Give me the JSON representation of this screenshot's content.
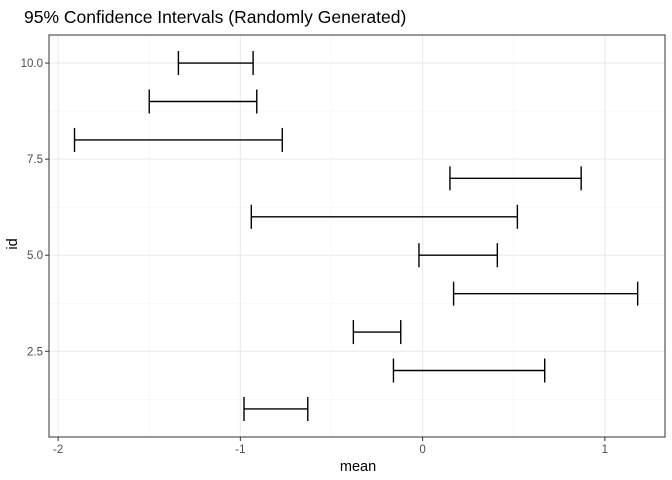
{
  "chart_data": {
    "type": "errorbar",
    "title": "95% Confidence Intervals (Randomly Generated)",
    "xlabel": "mean",
    "ylabel": "id",
    "xlim": [
      -2.05,
      1.33
    ],
    "ylim": [
      0.27,
      10.73
    ],
    "x_ticks": [
      -2,
      -1,
      0,
      1
    ],
    "x_tick_labels": [
      "-2",
      "-1",
      "0",
      "1"
    ],
    "y_ticks": [
      2.5,
      5.0,
      7.5,
      10.0
    ],
    "y_tick_labels": [
      "2.5",
      "5.0",
      "7.5",
      "10.0"
    ],
    "grid": true,
    "intervals": [
      {
        "id": 1,
        "lower": -0.98,
        "upper": -0.63
      },
      {
        "id": 2,
        "lower": -0.16,
        "upper": 0.67
      },
      {
        "id": 3,
        "lower": -0.38,
        "upper": -0.12
      },
      {
        "id": 4,
        "lower": 0.17,
        "upper": 1.18
      },
      {
        "id": 5,
        "lower": -0.02,
        "upper": 0.41
      },
      {
        "id": 6,
        "lower": -0.94,
        "upper": 0.52
      },
      {
        "id": 7,
        "lower": 0.15,
        "upper": 0.87
      },
      {
        "id": 8,
        "lower": -1.91,
        "upper": -0.77
      },
      {
        "id": 9,
        "lower": -1.5,
        "upper": -0.91
      },
      {
        "id": 10,
        "lower": -1.34,
        "upper": -0.93
      }
    ]
  }
}
